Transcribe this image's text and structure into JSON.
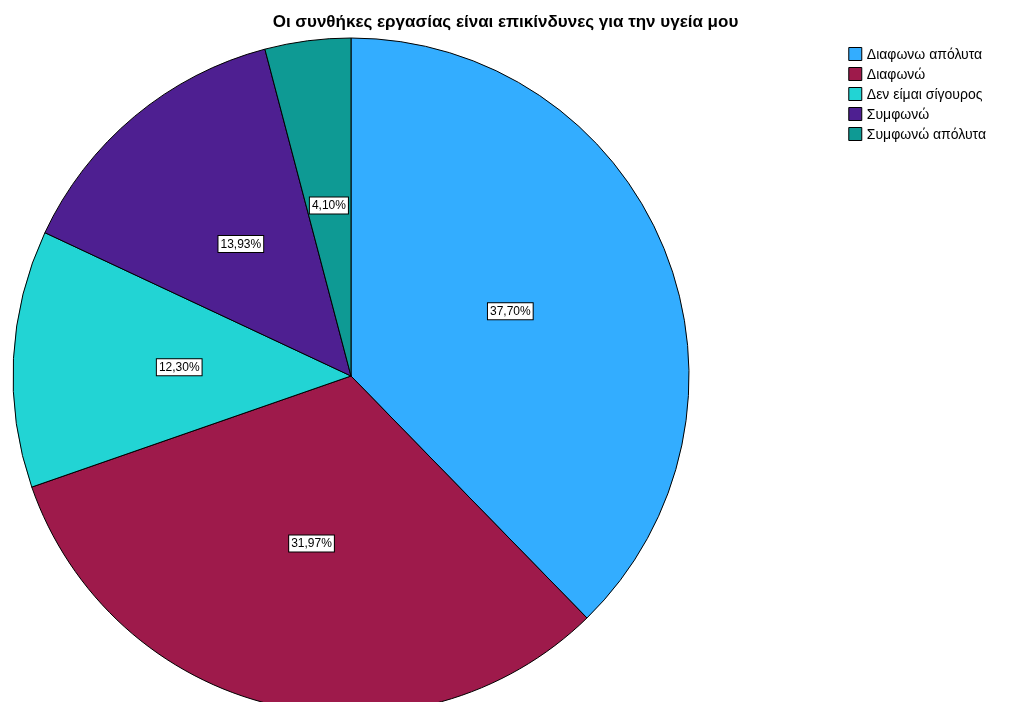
{
  "chart_data": {
    "type": "pie",
    "title": "Οι συνθήκες εργασίας είναι επικίνδυνες για την υγεία μου",
    "categories": [
      "Διαφωνω απόλυτα",
      "Διαφωνώ",
      "Δεν είμαι σίγουρος",
      "Συμφωνώ",
      "Συμφωνώ απόλυτα"
    ],
    "values": [
      37.7,
      31.97,
      12.3,
      13.93,
      4.1
    ],
    "value_labels": [
      "37,70%",
      "31,97%",
      "12,30%",
      "13,93%",
      "4,10%"
    ],
    "colors": [
      "#33adff",
      "#9e1a4b",
      "#22d4d4",
      "#4e1f91",
      "#0e9a94"
    ],
    "legend": "top right"
  }
}
